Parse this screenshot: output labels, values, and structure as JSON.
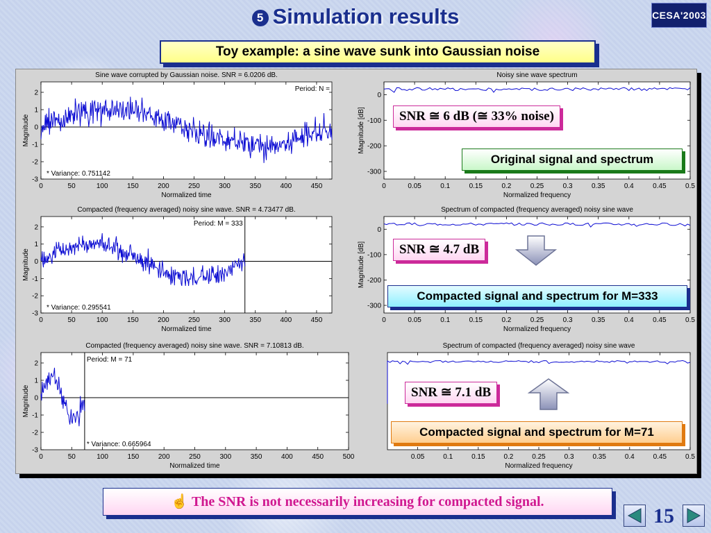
{
  "slide": {
    "bullet": "5",
    "title": "Simulation results",
    "logo": "CESA'2003",
    "subtitle": "Toy example: a sine wave sunk into Gaussian noise",
    "conclusion_icon": "hand-pointing-icon",
    "conclusion": "The SNR is not necessarily increasing for compacted signal.",
    "page_number": "15",
    "prev_icon": "triangle-left-icon",
    "next_icon": "triangle-right-icon"
  },
  "callouts": {
    "snr1": "SNR ≅  6 dB (≅ 33% noise)",
    "desc1": "Original signal and spectrum",
    "snr2": "SNR ≅  4.7 dB",
    "desc2": "Compacted signal and spectrum for M=333",
    "snr3": "SNR ≅  7.1 dB",
    "desc3": "Compacted signal and spectrum for M=71",
    "arrow_down_icon": "arrow-down-icon",
    "arrow_up_icon": "arrow-up-icon"
  },
  "colors": {
    "signal": "#0a0ad2",
    "title_blue": "#1a2f8e",
    "accent_magenta": "#cc2a9a"
  },
  "chart_data": [
    {
      "id": "time1",
      "type": "line",
      "title": "Sine wave corrupted by Gaussian noise. SNR = 6.0206 dB.",
      "xlabel": "Normalized time",
      "ylabel": "Magnitude",
      "xlim": [
        0,
        475
      ],
      "ylim": [
        -3,
        2.6
      ],
      "xticks": [
        0,
        50,
        100,
        150,
        200,
        250,
        300,
        350,
        400,
        450
      ],
      "yticks": [
        -3,
        -2,
        -1,
        0,
        1,
        2
      ],
      "annotations": [
        "Period: N =",
        "* Variance: 0.751142"
      ],
      "series": [
        {
          "x_range": [
            0,
            475
          ],
          "points": 475,
          "period": 475,
          "amplitude": 1,
          "noise_std": 0.5
        }
      ],
      "zero_line": true
    },
    {
      "id": "spec1",
      "type": "line",
      "title": "Noisy sine wave spectrum",
      "xlabel": "Normalized frequency",
      "ylabel": "Magnitude [dB]",
      "xlim": [
        0,
        0.5
      ],
      "ylim": [
        -330,
        50
      ],
      "xticks": [
        0,
        0.05,
        0.1,
        0.15,
        0.2,
        0.25,
        0.3,
        0.35,
        0.4,
        0.45,
        0.5
      ],
      "yticks": [
        0,
        -100,
        -200,
        -300
      ],
      "series": [
        {
          "x_range": [
            0,
            0.5
          ],
          "level_db": 22,
          "ripple_db": 6
        }
      ]
    },
    {
      "id": "time2",
      "type": "line",
      "title": "Compacted (frequency averaged) noisy sine wave. SNR = 4.73477 dB.",
      "xlabel": "Normalized time",
      "ylabel": "Magnitude",
      "xlim": [
        0,
        475
      ],
      "ylim": [
        -3,
        2.6
      ],
      "xticks": [
        0,
        50,
        100,
        150,
        200,
        250,
        300,
        350,
        400,
        450
      ],
      "yticks": [
        -3,
        -2,
        -1,
        0,
        1,
        2
      ],
      "annotations": [
        "Period: M = 333",
        "* Variance: 0.295541"
      ],
      "series": [
        {
          "x_range": [
            0,
            333
          ],
          "points": 333,
          "period": 333,
          "amplitude": 1,
          "noise_std": 0.4
        }
      ],
      "vline": 333,
      "zero_line": true
    },
    {
      "id": "spec2",
      "type": "line",
      "title": "Spectrum of compacted (frequency averaged) noisy sine wave",
      "xlabel": "Normalized frequency",
      "ylabel": "Magnitude [dB]",
      "xlim": [
        0,
        0.5
      ],
      "ylim": [
        -330,
        50
      ],
      "xticks": [
        0,
        0.05,
        0.1,
        0.15,
        0.2,
        0.25,
        0.3,
        0.35,
        0.4,
        0.45,
        0.5
      ],
      "yticks": [
        0,
        -100,
        -200,
        -300
      ],
      "series": [
        {
          "x_range": [
            0,
            0.5
          ],
          "level_db": 20,
          "ripple_db": 5
        }
      ]
    },
    {
      "id": "time3",
      "type": "line",
      "title": "Compacted (frequency averaged) noisy sine wave. SNR = 7.10813 dB.",
      "xlabel": "Normalized time",
      "ylabel": "Magnitude",
      "xlim": [
        0,
        500
      ],
      "ylim": [
        -3,
        2.6
      ],
      "xticks": [
        0,
        50,
        100,
        150,
        200,
        250,
        300,
        350,
        400,
        450,
        500
      ],
      "yticks": [
        -3,
        -2,
        -1,
        0,
        1,
        2
      ],
      "annotations": [
        "Period: M = 71",
        "* Variance: 0.665964"
      ],
      "series": [
        {
          "x_range": [
            0,
            71
          ],
          "points": 71,
          "period": 71,
          "amplitude": 1.2,
          "noise_std": 0.45
        }
      ],
      "vline": 71,
      "zero_line": true
    },
    {
      "id": "spec3",
      "type": "line",
      "title": "Spectrum of compacted (frequency averaged) noisy sine wave",
      "xlabel": "Normalized frequency",
      "ylabel": "",
      "xlim": [
        0,
        0.5
      ],
      "ylim": [
        -330,
        50
      ],
      "xticks": [
        0.05,
        0.1,
        0.15,
        0.2,
        0.25,
        0.3,
        0.35,
        0.4,
        0.45,
        0.5
      ],
      "yticks": [],
      "series": [
        {
          "x_range": [
            0,
            0.5
          ],
          "level_db": 15,
          "ripple_db": 4
        }
      ]
    }
  ]
}
